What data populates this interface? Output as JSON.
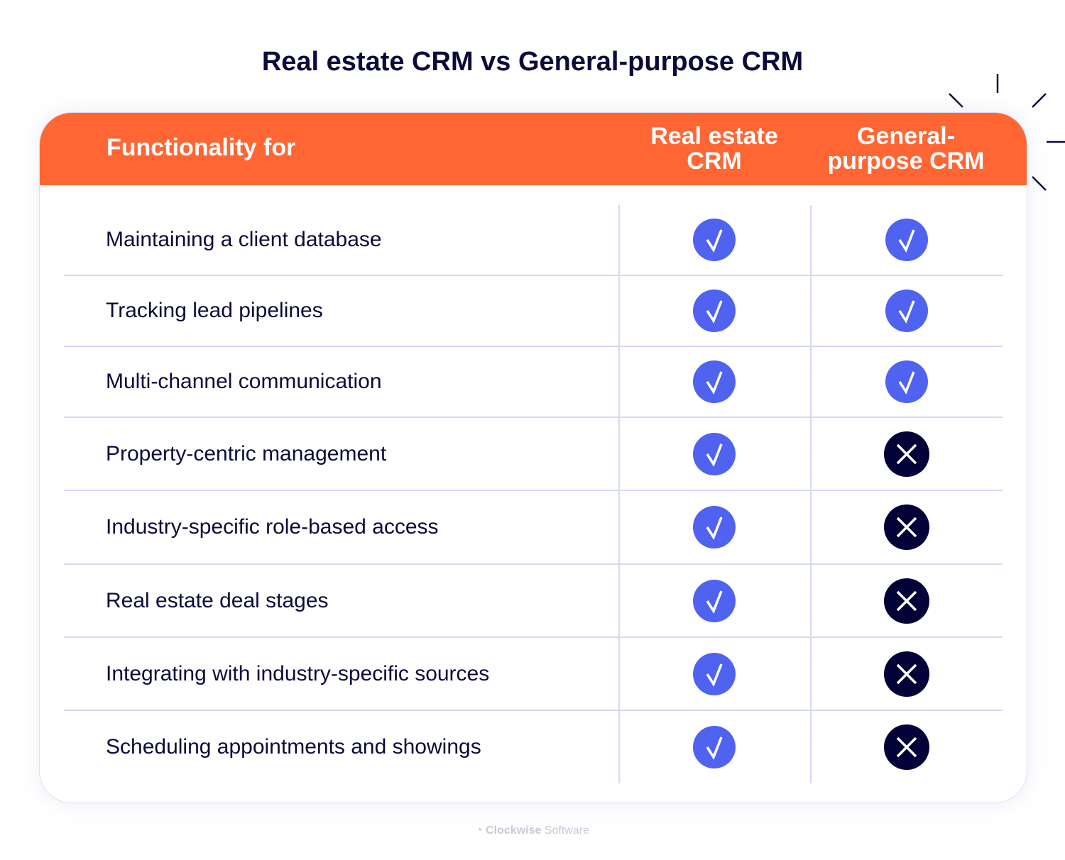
{
  "title": "Real estate CRM vs General-purpose CRM",
  "header": {
    "functionality": "Functionality for",
    "col_real_estate": "Real estate CRM",
    "col_general": "General-purpose CRM"
  },
  "colors": {
    "header": "#ff6633",
    "check": "#4f62f0",
    "cross": "#020238"
  },
  "rows": [
    {
      "label": "Maintaining a client database",
      "real_estate": "check-icon",
      "general": "check-icon"
    },
    {
      "label": "Tracking lead pipelines",
      "real_estate": "check-icon",
      "general": "check-icon"
    },
    {
      "label": "Multi-channel communication",
      "real_estate": "check-icon",
      "general": "check-icon"
    },
    {
      "label": "Property-centric management",
      "real_estate": "check-icon",
      "general": "cross-icon"
    },
    {
      "label": "Industry-specific role-based access",
      "real_estate": "check-icon",
      "general": "cross-icon"
    },
    {
      "label": "Real estate deal stages",
      "real_estate": "check-icon",
      "general": "cross-icon"
    },
    {
      "label": "Integrating with industry-specific sources",
      "real_estate": "check-icon",
      "general": "cross-icon"
    },
    {
      "label": "Scheduling appointments and showings",
      "real_estate": "check-icon",
      "general": "cross-icon"
    }
  ],
  "footer": {
    "brand_bold": "Clockwise",
    "brand_light": "Software"
  }
}
